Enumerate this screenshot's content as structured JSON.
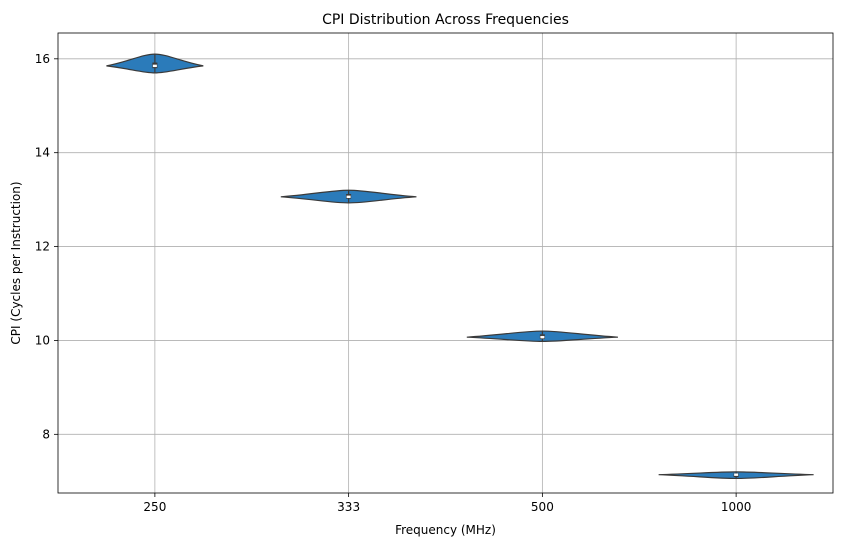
{
  "chart_data": {
    "type": "violin",
    "title": "CPI Distribution Across Frequencies",
    "xlabel": "Frequency (MHz)",
    "ylabel": "CPI (Cycles per Instruction)",
    "categories": [
      "250",
      "333",
      "500",
      "1000"
    ],
    "yticks": [
      8,
      10,
      12,
      14,
      16
    ],
    "ylim": [
      6.75,
      16.55
    ],
    "grid": true,
    "color": "#2b7bba",
    "violins": [
      {
        "category": "250",
        "min": 15.7,
        "max": 16.1,
        "q1": 15.8,
        "median": 15.85,
        "q3": 15.92,
        "max_width": 0.25
      },
      {
        "category": "333",
        "min": 12.93,
        "max": 13.2,
        "q1": 13.02,
        "median": 13.06,
        "q3": 13.12,
        "max_width": 0.35
      },
      {
        "category": "500",
        "min": 9.98,
        "max": 10.2,
        "q1": 10.03,
        "median": 10.07,
        "q3": 10.13,
        "max_width": 0.39
      },
      {
        "category": "1000",
        "min": 7.06,
        "max": 7.2,
        "q1": 7.09,
        "median": 7.14,
        "q3": 7.17,
        "max_width": 0.4
      }
    ]
  }
}
